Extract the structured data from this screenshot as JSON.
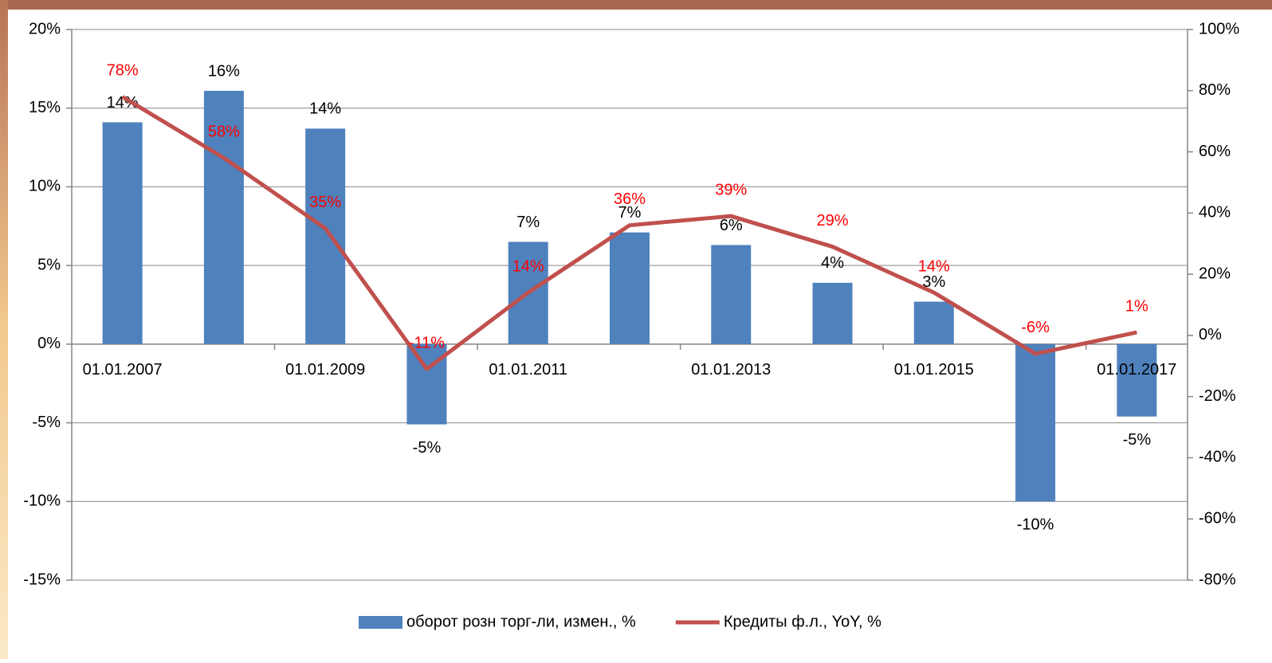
{
  "chart_data": {
    "type": "bar_line",
    "categories": [
      "01.01.2007",
      null,
      "01.01.2009",
      null,
      "01.01.2011",
      null,
      "01.01.2013",
      null,
      "01.01.2015",
      null,
      "01.01.2017"
    ],
    "series": [
      {
        "name": "оборот розн торг-ли, измен., %",
        "type": "bar",
        "color": "#4f81bd",
        "values": [
          14.1,
          16.1,
          13.7,
          -5.1,
          6.5,
          7.1,
          6.3,
          3.9,
          2.7,
          -10,
          -4.6
        ],
        "value_labels": [
          "14%",
          "16%",
          "14%",
          "-5%",
          "7%",
          "7%",
          "6%",
          "4%",
          "3%",
          "-10%",
          "-5%"
        ]
      },
      {
        "name": "Кредиты ф.л., YoY, %",
        "type": "line",
        "axis": "y2",
        "color": "#c0504d",
        "label_color": "#ff0000",
        "values": [
          78,
          58,
          35,
          -11,
          14,
          36,
          39,
          29,
          14,
          -6,
          1
        ],
        "value_labels": [
          "78%",
          "58%",
          "35%",
          "-11%",
          "14%",
          "36%",
          "39%",
          "29%",
          "14%",
          "-6%",
          "1%"
        ]
      }
    ],
    "ylim": [
      -15,
      20
    ],
    "yticks": [
      {
        "value": -15,
        "label": "-15%"
      },
      {
        "value": -10,
        "label": "-10%"
      },
      {
        "value": -5,
        "label": "-5%"
      },
      {
        "value": 0,
        "label": "0%"
      },
      {
        "value": 5,
        "label": "5%"
      },
      {
        "value": 10,
        "label": "10%"
      },
      {
        "value": 15,
        "label": "15%"
      },
      {
        "value": 20,
        "label": "20%"
      }
    ],
    "y2lim": [
      -80,
      100
    ],
    "y2ticks": [
      {
        "value": -80,
        "label": "-80%"
      },
      {
        "value": -60,
        "label": "-60%"
      },
      {
        "value": -40,
        "label": "-40%"
      },
      {
        "value": -20,
        "label": "-20%"
      },
      {
        "value": 0,
        "label": "0%"
      },
      {
        "value": 20,
        "label": "20%"
      },
      {
        "value": 40,
        "label": "40%"
      },
      {
        "value": 60,
        "label": "60%"
      },
      {
        "value": 80,
        "label": "80%"
      },
      {
        "value": 100,
        "label": "100%"
      }
    ],
    "grid": true,
    "legend": "bottom"
  }
}
